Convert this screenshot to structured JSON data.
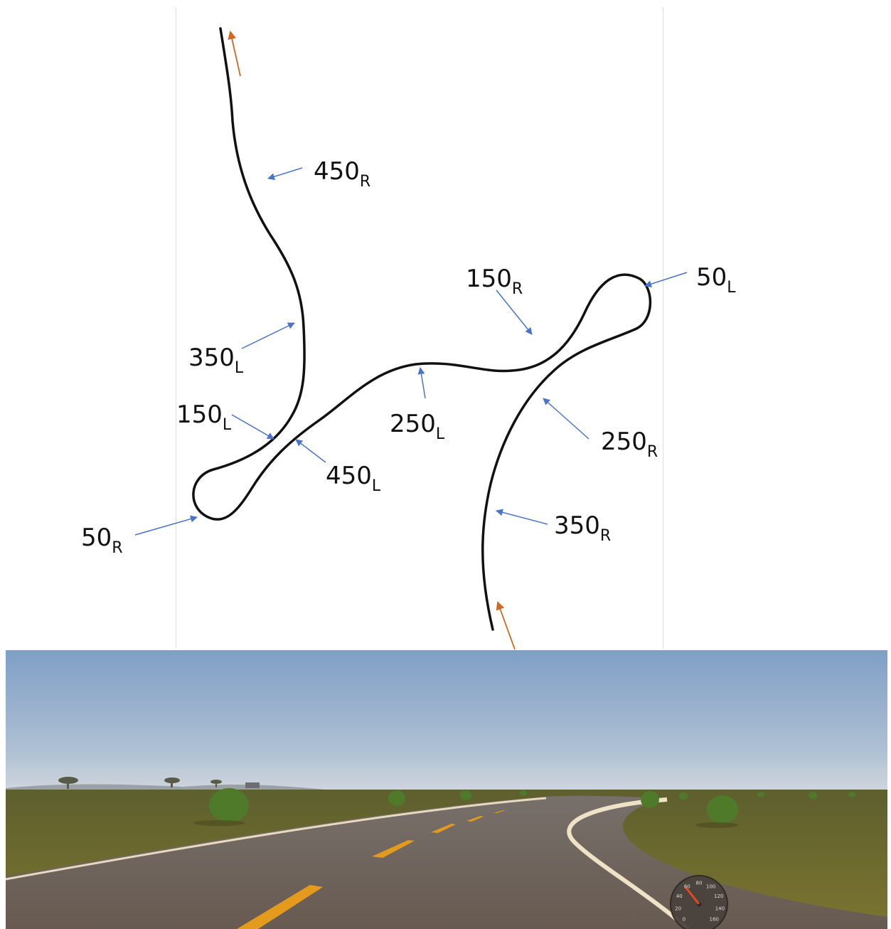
{
  "diagram": {
    "labels": [
      {
        "id": "450R",
        "value": "450",
        "sub": "R"
      },
      {
        "id": "350L",
        "value": "350",
        "sub": "L"
      },
      {
        "id": "150L",
        "value": "150",
        "sub": "L"
      },
      {
        "id": "450L",
        "value": "450",
        "sub": "L"
      },
      {
        "id": "50R",
        "value": "50",
        "sub": "R"
      },
      {
        "id": "250L",
        "value": "250",
        "sub": "L"
      },
      {
        "id": "150R",
        "value": "150",
        "sub": "R"
      },
      {
        "id": "50L",
        "value": "50",
        "sub": "L"
      },
      {
        "id": "250R",
        "value": "250",
        "sub": "R"
      },
      {
        "id": "350R",
        "value": "350",
        "sub": "R"
      }
    ],
    "colors": {
      "track": "#111111",
      "pointer": "#4a74c9",
      "direction": "#d0691f",
      "frame": "#d8d8d8"
    }
  },
  "scene": {
    "speedometer_ticks": [
      "0",
      "20",
      "40",
      "60",
      "80",
      "100",
      "120",
      "140",
      "160"
    ],
    "colors": {
      "sky_top": "#7f9fc6",
      "sky_bottom": "#c9d3dc",
      "grass": "#6f6a2c",
      "road": "#6d6259",
      "lane": "#e49a1c",
      "edge": "#e8d9c0"
    }
  }
}
